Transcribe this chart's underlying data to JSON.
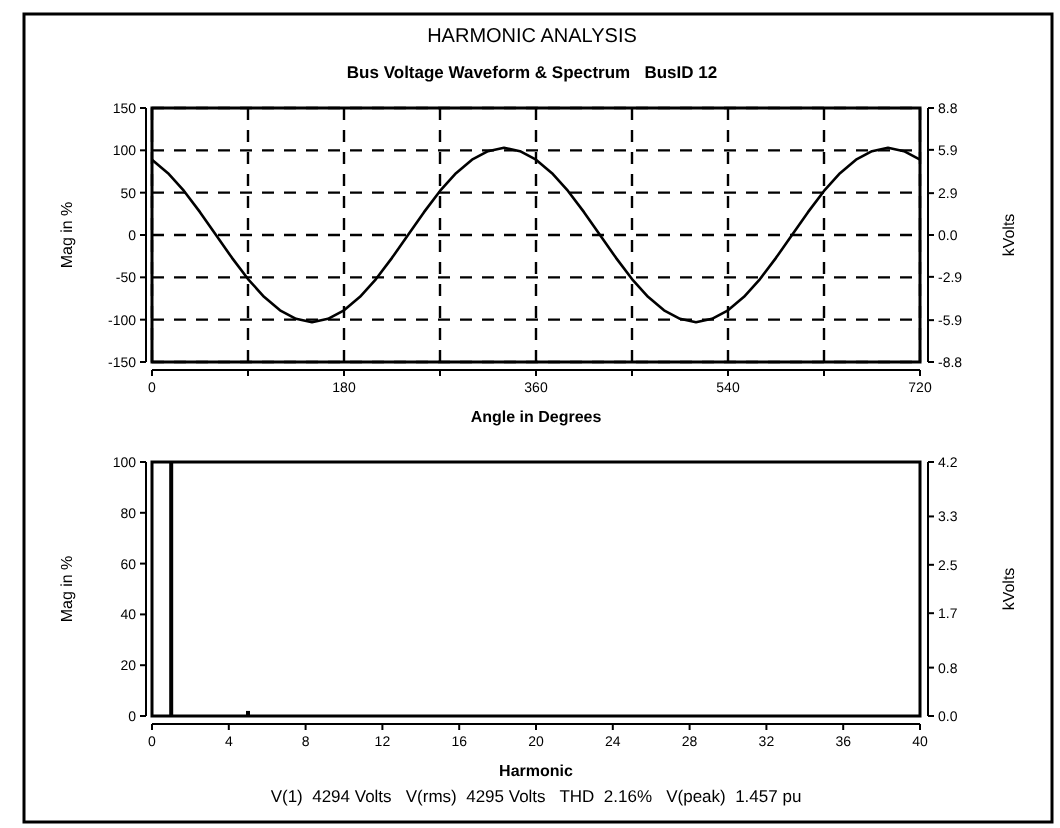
{
  "chart_data": [
    {
      "type": "line",
      "title": "HARMONIC ANALYSIS",
      "subtitle": "Bus Voltage Waveform & Spectrum   BusID 12",
      "xlabel": "Angle in Degrees",
      "ylabel": "Mag in %",
      "y2label": "kVolts",
      "x": [
        0,
        15,
        30,
        45,
        60,
        75,
        90,
        105,
        120,
        135,
        150,
        165,
        180,
        195,
        210,
        225,
        240,
        255,
        270,
        285,
        300,
        315,
        330,
        345,
        360,
        375,
        390,
        405,
        420,
        435,
        450,
        465,
        480,
        495,
        510,
        525,
        540,
        555,
        570,
        585,
        600,
        615,
        630,
        645,
        660,
        675,
        690,
        705,
        720
      ],
      "series": [
        {
          "color": "#000000",
          "values": [
            89,
            73,
            52,
            27,
            0,
            -27,
            -52,
            -73,
            -89,
            -99,
            -103,
            -99,
            -89,
            -73,
            -52,
            -27,
            0,
            27,
            52,
            73,
            89,
            99,
            103,
            99,
            89,
            73,
            52,
            27,
            0,
            -27,
            -52,
            -73,
            -89,
            -99,
            -103,
            -99,
            -89,
            -73,
            -52,
            -27,
            0,
            27,
            52,
            73,
            89,
            99,
            103,
            99,
            89
          ]
        }
      ],
      "xlim": [
        0,
        720
      ],
      "xticks": [
        0,
        {
          "value": 90,
          "label": null
        },
        180,
        {
          "value": 270,
          "label": null
        },
        360,
        {
          "value": 450,
          "label": null
        },
        540,
        {
          "value": 630,
          "label": null
        },
        720
      ],
      "ylim": [
        -150,
        150
      ],
      "yticks": [
        -150,
        -100,
        -50,
        0,
        50,
        100,
        150
      ],
      "y2lim": [
        -8.8,
        8.8
      ],
      "y2ticks": [
        -8.8,
        -5.9,
        -2.9,
        {
          "value": 0,
          "label": "0.0"
        },
        2.9,
        5.9,
        8.8
      ],
      "grid": true,
      "line_style": "solid"
    },
    {
      "type": "bar",
      "xlabel": "Harmonic",
      "ylabel": "Mag in %",
      "y2label": "kVolts",
      "x": [
        1,
        5
      ],
      "values": [
        100,
        2
      ],
      "color": "#000000",
      "xlim": [
        0,
        40
      ],
      "xticks": [
        0,
        4,
        8,
        12,
        16,
        20,
        24,
        28,
        32,
        36,
        40
      ],
      "ylim": [
        0,
        100
      ],
      "yticks": [
        0,
        20,
        40,
        60,
        80,
        100
      ],
      "y2lim": [
        0,
        4.2
      ],
      "y2ticks": [
        {
          "value": 0,
          "label": "0.0"
        },
        {
          "value": 0.8,
          "label": "0.8"
        },
        {
          "value": 1.7,
          "label": "1.7"
        },
        {
          "value": 2.5,
          "label": "2.5"
        },
        {
          "value": 3.3,
          "label": "3.3"
        },
        {
          "value": 4.2,
          "label": "4.2"
        }
      ],
      "grid": false,
      "annotations": [
        "V(1)  4294 Volts   V(rms)  4295 Volts   THD  2.16%   V(peak)  1.457 pu"
      ]
    }
  ]
}
